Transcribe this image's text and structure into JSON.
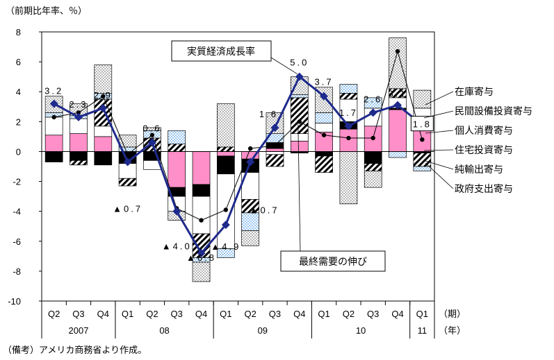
{
  "chart_data": {
    "type": "bar",
    "ylabel": "（前期比年率、％）",
    "ylim": [
      -10,
      8
    ],
    "yticks": [
      8,
      6,
      4,
      2,
      0,
      -2,
      -4,
      -6,
      -8,
      -10
    ],
    "categories": [
      "Q2",
      "Q3",
      "Q4",
      "Q1",
      "Q2",
      "Q3",
      "Q4",
      "Q1",
      "Q2",
      "Q3",
      "Q4",
      "Q1",
      "Q2",
      "Q3",
      "Q4",
      "Q1"
    ],
    "years": [
      {
        "label": "2007",
        "from": 0,
        "to": 2
      },
      {
        "label": "08",
        "from": 3,
        "to": 6
      },
      {
        "label": "09",
        "from": 7,
        "to": 10
      },
      {
        "label": "10",
        "from": 11,
        "to": 14
      },
      {
        "label": "11",
        "from": 15,
        "to": 15
      }
    ],
    "axis_period_label": "（期）",
    "axis_year_label": "（年）",
    "series": [
      {
        "name": "個人消費寄与",
        "color": "#ff8fc8",
        "pattern": "solid",
        "values": [
          1.1,
          1.2,
          1.0,
          0.0,
          0.0,
          -2.4,
          -2.2,
          -0.3,
          -0.5,
          0.2,
          0.7,
          1.3,
          1.5,
          1.7,
          2.8,
          1.9
        ]
      },
      {
        "name": "住宅投資寄与",
        "color": "#000000",
        "pattern": "solid",
        "values": [
          -0.7,
          -0.6,
          -0.9,
          -0.8,
          -0.6,
          -0.6,
          -0.8,
          -1.2,
          -0.9,
          0.4,
          -0.1,
          -0.3,
          0.5,
          -0.8,
          0.1,
          -0.1
        ]
      },
      {
        "name": "民間設備投資寄与",
        "color": "#ffffff",
        "pattern": "solid",
        "values": [
          1.2,
          1.0,
          0.7,
          -1.0,
          -0.6,
          -1.0,
          -2.5,
          -5.0,
          -1.8,
          -0.2,
          0.5,
          0.6,
          1.5,
          1.2,
          0.7,
          1.0
        ]
      },
      {
        "name": "純輸出寄与",
        "color": "#000000",
        "pattern": "diagonal",
        "values": [
          0.0,
          -0.3,
          1.8,
          -0.5,
          0.9,
          0.5,
          -1.6,
          0.3,
          -0.9,
          -0.8,
          2.4,
          -1.1,
          0.4,
          -0.5,
          0.6,
          -0.9
        ]
      },
      {
        "name": "政府支出寄与",
        "color": "#9cc8f0",
        "pattern": "checker",
        "values": [
          0.3,
          0.2,
          0.4,
          0.3,
          0.5,
          0.9,
          -0.3,
          -0.6,
          -1.2,
          0.6,
          0.2,
          0.7,
          0.6,
          0.7,
          -0.4,
          -0.3
        ]
      },
      {
        "name": "在庫寄与",
        "color": "#000000",
        "pattern": "dots",
        "values": [
          1.1,
          0.8,
          1.9,
          0.8,
          0.2,
          -0.6,
          -1.3,
          2.9,
          -1.0,
          1.4,
          1.2,
          1.7,
          -3.5,
          -1.1,
          3.4,
          1.2
        ]
      }
    ],
    "line_gdp": {
      "name": "実質経済成長率",
      "values": [
        3.2,
        2.3,
        2.9,
        -0.7,
        0.6,
        -4.0,
        -6.8,
        -4.9,
        -0.7,
        1.6,
        5.0,
        3.7,
        1.7,
        2.6,
        3.1,
        1.8
      ],
      "labels": [
        "3.2",
        "2.3",
        "2.9",
        "▲0.7",
        "0.6",
        "▲4.0",
        "▲6.8",
        "▲4.9",
        "▲0.7",
        "1.6",
        "5.0",
        "3.7",
        "1.7",
        "2.6",
        "3.1",
        "1.8"
      ],
      "color": "#1e2a8c"
    },
    "line_final_demand": {
      "name": "最終需要の伸び",
      "values": [
        2.3,
        2.6,
        3.7,
        -0.2,
        1.1,
        -3.8,
        -4.6,
        -3.9,
        0.2,
        0.4,
        2.0,
        1.1,
        0.9,
        0.9,
        6.7,
        0.8
      ],
      "color": "#000000"
    },
    "legend": [
      "在庫寄与",
      "民間設備投資寄与",
      "個人消費寄与",
      "住宅投資寄与",
      "純輸出寄与",
      "政府支出寄与"
    ]
  },
  "note": "（備考）アメリカ商務省より作成。"
}
